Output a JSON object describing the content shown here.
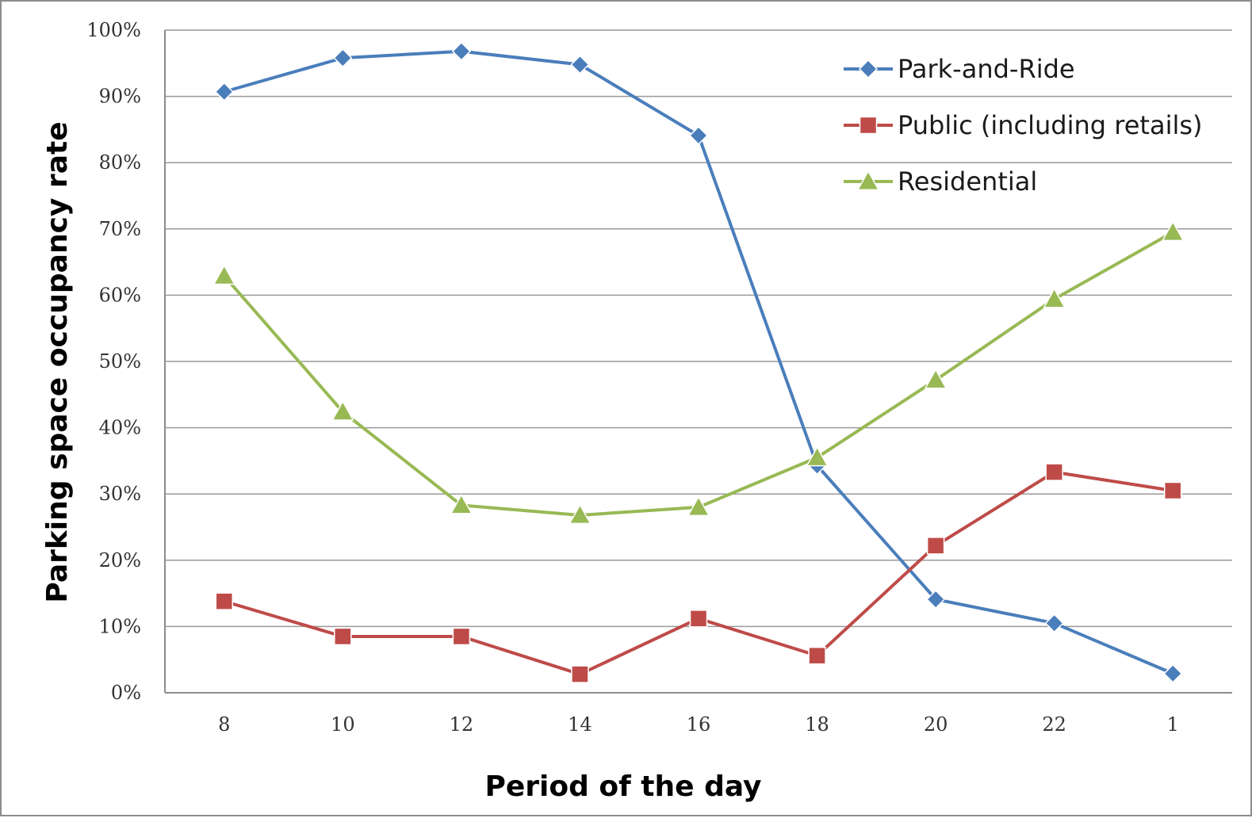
{
  "chart_data": {
    "type": "line",
    "xlabel": "Period of the day",
    "ylabel": "Parking space occupancy rate",
    "categories": [
      "8",
      "10",
      "12",
      "14",
      "16",
      "18",
      "20",
      "22",
      "1"
    ],
    "ylim": [
      0,
      100
    ],
    "yticks": [
      0,
      10,
      20,
      30,
      40,
      50,
      60,
      70,
      80,
      90,
      100
    ],
    "ytick_labels": [
      "0%",
      "10%",
      "20%",
      "30%",
      "40%",
      "50%",
      "60%",
      "70%",
      "80%",
      "90%",
      "100%"
    ],
    "grid": "horizontal",
    "legend_position": "top-right",
    "series": [
      {
        "name": "Park-and-Ride",
        "color": "#4a7ebb",
        "marker": "diamond",
        "values": [
          90.7,
          95.8,
          96.8,
          94.8,
          84.1,
          34.3,
          14.1,
          10.5,
          2.9
        ]
      },
      {
        "name": "Public (including retails)",
        "color": "#be4b48",
        "marker": "square",
        "values": [
          13.8,
          8.5,
          8.5,
          2.8,
          11.2,
          5.6,
          22.2,
          33.3,
          30.5
        ]
      },
      {
        "name": "Residential",
        "color": "#98b954",
        "marker": "triangle",
        "values": [
          62.9,
          42.4,
          28.3,
          26.8,
          28.0,
          35.5,
          47.2,
          59.4,
          69.5
        ]
      }
    ]
  }
}
